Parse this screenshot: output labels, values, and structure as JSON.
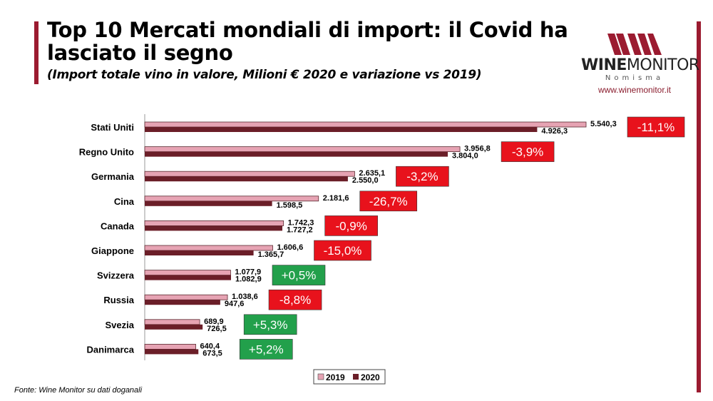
{
  "header": {
    "title": "Top 10 Mercati mondiali di import: il Covid ha lasciato il segno",
    "subtitle": "(Import totale vino in valore, Milioni € 2020 e variazione vs 2019)"
  },
  "logo": {
    "brand_bold": "WINE",
    "brand_light": "MONITOR",
    "tagline": "Nomisma",
    "url": "www.winemonitor.it"
  },
  "source": "Fonte: Wine Monitor su dati doganali",
  "colors": {
    "c2019": "#e6a3b3",
    "c2020": "#6b1e28",
    "negative": "#e8121c",
    "positive": "#22a04b",
    "accent": "#9b1b30"
  },
  "chart_data": {
    "type": "bar",
    "orientation": "horizontal",
    "categories": [
      "Stati Uniti",
      "Regno Unito",
      "Germania",
      "Cina",
      "Canada",
      "Giappone",
      "Svizzera",
      "Russia",
      "Svezia",
      "Danimarca"
    ],
    "series": [
      {
        "name": "2019",
        "values": [
          5540.3,
          3956.8,
          2635.1,
          2181.6,
          1742.3,
          1606.6,
          1077.9,
          1038.6,
          689.9,
          640.4
        ],
        "labels": [
          "5.540,3",
          "3.956,8",
          "2.635,1",
          "2.181,6",
          "1.742,3",
          "1.606,6",
          "1.077,9",
          "1.038,6",
          "689,9",
          "640,4"
        ]
      },
      {
        "name": "2020",
        "values": [
          4926.3,
          3804.0,
          2550.0,
          1598.5,
          1727.2,
          1365.7,
          1082.9,
          947.6,
          726.5,
          673.5
        ],
        "labels": [
          "4.926,3",
          "3.804,0",
          "2.550,0",
          "1.598,5",
          "1.727,2",
          "1.365,7",
          "1.082,9",
          "947,6",
          "726,5",
          "673,5"
        ]
      }
    ],
    "variation": [
      "-11,1%",
      "-3,9%",
      "-3,2%",
      "-26,7%",
      "-0,9%",
      "-15,0%",
      "+0,5%",
      "-8,8%",
      "+5,3%",
      "+5,2%"
    ],
    "legend_position": "bottom-right",
    "grid": false
  }
}
